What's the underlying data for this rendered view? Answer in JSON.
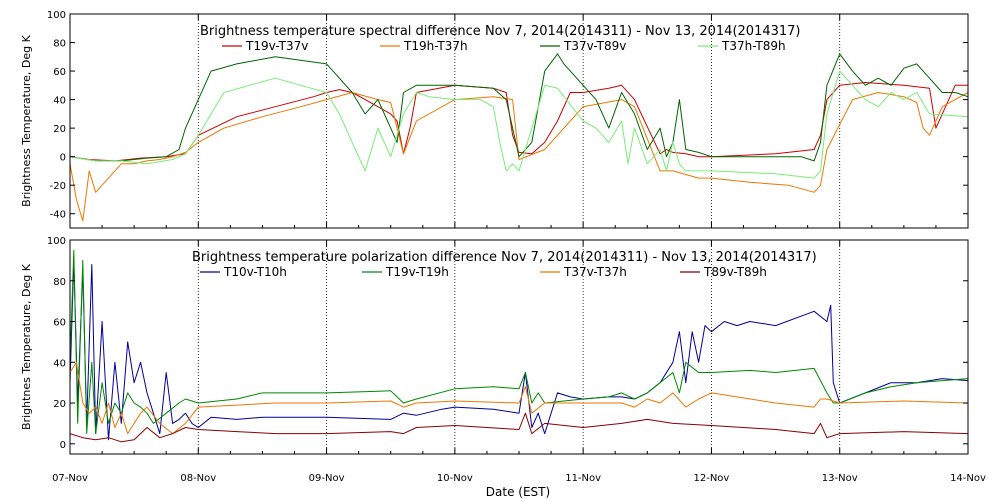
{
  "xlabel": "Date (EST)",
  "x_ticks": [
    "07-Nov",
    "08-Nov",
    "09-Nov",
    "10-Nov",
    "11-Nov",
    "12-Nov",
    "13-Nov",
    "14-Nov"
  ],
  "chart_data": [
    {
      "type": "line",
      "title": "Brightness temperature spectral difference    Nov  7, 2014(2014311) - Nov 13, 2014(2014317)",
      "ylabel": "Brightness Temperature, Deg K",
      "xlim": [
        0,
        7
      ],
      "ylim": [
        -50,
        100
      ],
      "y_ticks": [
        -40,
        -20,
        0,
        20,
        40,
        60,
        80,
        100
      ],
      "grid": "vertical dotted at each day",
      "legend_position": "top",
      "series": [
        {
          "name": "T19v-T37v",
          "color": "#cc0000",
          "x": [
            0,
            0.15,
            0.35,
            0.55,
            0.75,
            0.9,
            1.0,
            1.3,
            1.6,
            1.9,
            2.0,
            2.1,
            2.2,
            2.3,
            2.4,
            2.5,
            2.55,
            2.6,
            2.65,
            2.7,
            3.0,
            3.3,
            3.4,
            3.45,
            3.5,
            3.6,
            3.7,
            3.8,
            3.9,
            4.0,
            4.2,
            4.3,
            4.32,
            4.4,
            4.6,
            4.65,
            4.7,
            4.8,
            4.9,
            5.0,
            5.5,
            5.8,
            5.85,
            5.9,
            6.0,
            6.2,
            6.5,
            6.7,
            6.75,
            6.8,
            6.9,
            7.0
          ],
          "y": [
            0,
            -2,
            -3,
            -1,
            0,
            2,
            15,
            28,
            35,
            42,
            45,
            47,
            45,
            40,
            35,
            30,
            25,
            2,
            20,
            45,
            50,
            48,
            45,
            15,
            3,
            2,
            10,
            25,
            45,
            45,
            48,
            50,
            48,
            40,
            2,
            5,
            3,
            2,
            0,
            0,
            2,
            5,
            15,
            40,
            50,
            52,
            50,
            48,
            20,
            30,
            50,
            50
          ]
        },
        {
          "name": "T19h-T37h",
          "color": "#ee7700",
          "x": [
            0,
            0.05,
            0.1,
            0.15,
            0.2,
            0.3,
            0.4,
            0.5,
            0.6,
            0.7,
            0.8,
            0.9,
            1.0,
            1.2,
            1.5,
            1.8,
            2.0,
            2.2,
            2.4,
            2.5,
            2.6,
            2.7,
            3.0,
            3.3,
            3.45,
            3.5,
            3.7,
            4.0,
            4.3,
            4.4,
            4.6,
            4.7,
            4.9,
            5.0,
            5.3,
            5.6,
            5.8,
            5.85,
            5.9,
            6.1,
            6.3,
            6.5,
            6.6,
            6.65,
            6.7,
            6.8,
            7.0
          ],
          "y": [
            -5,
            -30,
            -45,
            -10,
            -25,
            -15,
            -5,
            -5,
            -3,
            -2,
            0,
            3,
            10,
            20,
            28,
            35,
            40,
            45,
            40,
            38,
            2,
            25,
            40,
            42,
            40,
            -2,
            5,
            35,
            40,
            35,
            -10,
            -10,
            -15,
            -15,
            -18,
            -20,
            -25,
            -20,
            5,
            40,
            45,
            42,
            38,
            20,
            15,
            35,
            45
          ]
        },
        {
          "name": "T37v-T89v",
          "color": "#006600",
          "x": [
            0,
            0.2,
            0.4,
            0.6,
            0.75,
            0.85,
            0.9,
            1.0,
            1.1,
            1.3,
            1.6,
            2.0,
            2.2,
            2.3,
            2.4,
            2.5,
            2.55,
            2.6,
            2.7,
            3.0,
            3.3,
            3.4,
            3.45,
            3.5,
            3.6,
            3.7,
            3.8,
            3.85,
            3.9,
            4.0,
            4.1,
            4.2,
            4.3,
            4.4,
            4.5,
            4.6,
            4.65,
            4.7,
            4.75,
            4.8,
            4.9,
            5.0,
            5.5,
            5.7,
            5.8,
            5.85,
            5.9,
            6.0,
            6.1,
            6.2,
            6.3,
            6.4,
            6.5,
            6.6,
            6.7,
            6.8,
            6.9,
            7.0
          ],
          "y": [
            0,
            -3,
            -3,
            -1,
            0,
            5,
            20,
            40,
            60,
            65,
            70,
            65,
            45,
            30,
            40,
            20,
            10,
            45,
            50,
            50,
            48,
            40,
            20,
            0,
            10,
            60,
            72,
            65,
            60,
            50,
            40,
            20,
            45,
            30,
            5,
            20,
            0,
            10,
            40,
            5,
            3,
            0,
            0,
            0,
            -3,
            10,
            50,
            72,
            60,
            50,
            55,
            50,
            62,
            65,
            55,
            45,
            45,
            42
          ]
        },
        {
          "name": "T37h-T89h",
          "color": "#77ee77",
          "x": [
            0,
            0.2,
            0.4,
            0.6,
            0.8,
            0.9,
            1.0,
            1.2,
            1.4,
            1.6,
            1.8,
            2.0,
            2.1,
            2.2,
            2.3,
            2.4,
            2.5,
            2.6,
            2.7,
            2.8,
            3.0,
            3.2,
            3.3,
            3.35,
            3.4,
            3.45,
            3.5,
            3.6,
            3.7,
            3.8,
            4.0,
            4.1,
            4.2,
            4.3,
            4.35,
            4.4,
            4.5,
            4.6,
            4.65,
            4.7,
            4.75,
            4.8,
            5.0,
            5.5,
            5.8,
            5.85,
            5.9,
            6.0,
            6.1,
            6.2,
            6.3,
            6.4,
            6.5,
            6.6,
            6.7,
            7.0
          ],
          "y": [
            0,
            -3,
            -3,
            -5,
            -2,
            2,
            15,
            45,
            50,
            55,
            50,
            45,
            30,
            10,
            -10,
            20,
            0,
            30,
            45,
            42,
            40,
            40,
            35,
            10,
            -10,
            -5,
            -10,
            20,
            50,
            48,
            25,
            20,
            10,
            25,
            -5,
            20,
            -5,
            5,
            -10,
            10,
            -5,
            -10,
            -10,
            -12,
            -15,
            -10,
            30,
            60,
            50,
            40,
            35,
            45,
            40,
            45,
            30,
            28
          ]
        }
      ]
    },
    {
      "type": "line",
      "title": "Brightness temperature polarization difference    Nov  7, 2014(2014311) - Nov 13, 2014(2014317)",
      "ylabel": "Brightnes Temperature, Deg K",
      "xlim": [
        0,
        7
      ],
      "ylim": [
        -5,
        100
      ],
      "y_ticks": [
        0,
        20,
        40,
        60,
        80,
        100
      ],
      "grid": "vertical dotted at each day",
      "legend_position": "top",
      "series": [
        {
          "name": "T10v-T10h",
          "color": "#000099",
          "x": [
            0,
            0.03,
            0.06,
            0.1,
            0.13,
            0.17,
            0.2,
            0.25,
            0.3,
            0.35,
            0.4,
            0.45,
            0.5,
            0.55,
            0.6,
            0.65,
            0.7,
            0.75,
            0.8,
            0.85,
            0.9,
            0.95,
            1.0,
            1.1,
            1.3,
            1.5,
            2.0,
            2.5,
            2.6,
            2.7,
            2.9,
            3.0,
            3.3,
            3.5,
            3.55,
            3.6,
            3.65,
            3.7,
            3.8,
            3.9,
            4.0,
            4.2,
            4.3,
            4.4,
            4.5,
            4.6,
            4.7,
            4.75,
            4.8,
            4.85,
            4.9,
            4.95,
            5.0,
            5.1,
            5.2,
            5.3,
            5.5,
            5.8,
            5.9,
            5.93,
            5.95,
            6.0,
            6.2,
            6.4,
            6.6,
            6.8,
            7.0
          ],
          "y": [
            30,
            90,
            20,
            85,
            10,
            88,
            5,
            60,
            2,
            40,
            10,
            50,
            30,
            40,
            25,
            15,
            5,
            35,
            10,
            12,
            15,
            10,
            8,
            13,
            12,
            13,
            13,
            12,
            15,
            14,
            17,
            18,
            17,
            15,
            35,
            8,
            15,
            5,
            25,
            23,
            22,
            23,
            23,
            22,
            25,
            30,
            40,
            55,
            30,
            55,
            40,
            58,
            55,
            60,
            58,
            60,
            58,
            65,
            60,
            68,
            30,
            20,
            25,
            30,
            30,
            32,
            31
          ]
        },
        {
          "name": "T19v-T19h",
          "color": "#008800",
          "x": [
            0,
            0.03,
            0.06,
            0.1,
            0.13,
            0.17,
            0.2,
            0.25,
            0.3,
            0.35,
            0.4,
            0.45,
            0.5,
            0.55,
            0.6,
            0.65,
            0.75,
            0.85,
            0.9,
            1.0,
            1.3,
            1.5,
            2.0,
            2.5,
            2.6,
            2.7,
            3.0,
            3.3,
            3.5,
            3.55,
            3.6,
            3.65,
            3.7,
            4.0,
            4.2,
            4.3,
            4.4,
            4.5,
            4.6,
            4.7,
            4.75,
            4.8,
            4.9,
            5.0,
            5.3,
            5.5,
            5.8,
            5.9,
            5.95,
            6.0,
            6.2,
            6.4,
            6.6,
            6.8,
            7.0
          ],
          "y": [
            40,
            95,
            10,
            90,
            5,
            40,
            5,
            30,
            10,
            20,
            15,
            25,
            20,
            18,
            15,
            10,
            15,
            20,
            22,
            20,
            22,
            25,
            25,
            26,
            20,
            22,
            27,
            28,
            27,
            35,
            20,
            25,
            20,
            22,
            23,
            25,
            22,
            25,
            30,
            35,
            25,
            40,
            35,
            35,
            36,
            35,
            37,
            25,
            20,
            20,
            25,
            28,
            30,
            31,
            32
          ]
        },
        {
          "name": "T37v-T37h",
          "color": "#ee7700",
          "x": [
            0,
            0.05,
            0.1,
            0.15,
            0.2,
            0.25,
            0.3,
            0.35,
            0.4,
            0.45,
            0.5,
            0.55,
            0.6,
            0.7,
            0.8,
            0.9,
            1.0,
            1.3,
            1.6,
            2.0,
            2.5,
            2.6,
            2.7,
            3.0,
            3.5,
            3.55,
            3.6,
            3.7,
            4.0,
            4.3,
            4.4,
            4.5,
            4.6,
            4.7,
            4.8,
            4.9,
            5.0,
            5.5,
            5.8,
            5.85,
            5.9,
            6.0,
            6.5,
            7.0
          ],
          "y": [
            35,
            40,
            20,
            15,
            18,
            10,
            20,
            8,
            15,
            5,
            10,
            15,
            18,
            10,
            5,
            10,
            18,
            19,
            20,
            20,
            21,
            18,
            20,
            21,
            20,
            28,
            15,
            20,
            20,
            20,
            18,
            22,
            20,
            25,
            18,
            22,
            25,
            20,
            18,
            22,
            22,
            20,
            21,
            20
          ]
        },
        {
          "name": "T89v-T89h",
          "color": "#880000",
          "x": [
            0,
            0.1,
            0.2,
            0.3,
            0.4,
            0.5,
            0.6,
            0.7,
            0.8,
            0.9,
            1.0,
            1.3,
            1.6,
            2.0,
            2.5,
            2.6,
            2.7,
            3.0,
            3.5,
            3.55,
            3.6,
            3.7,
            4.0,
            4.3,
            4.5,
            4.7,
            5.0,
            5.5,
            5.8,
            5.85,
            5.9,
            6.0,
            6.5,
            7.0
          ],
          "y": [
            5,
            3,
            2,
            3,
            1,
            2,
            8,
            3,
            5,
            8,
            7,
            6,
            5,
            5,
            6,
            5,
            8,
            9,
            7,
            15,
            5,
            10,
            8,
            10,
            12,
            10,
            9,
            7,
            5,
            10,
            3,
            5,
            6,
            5
          ]
        }
      ]
    }
  ]
}
